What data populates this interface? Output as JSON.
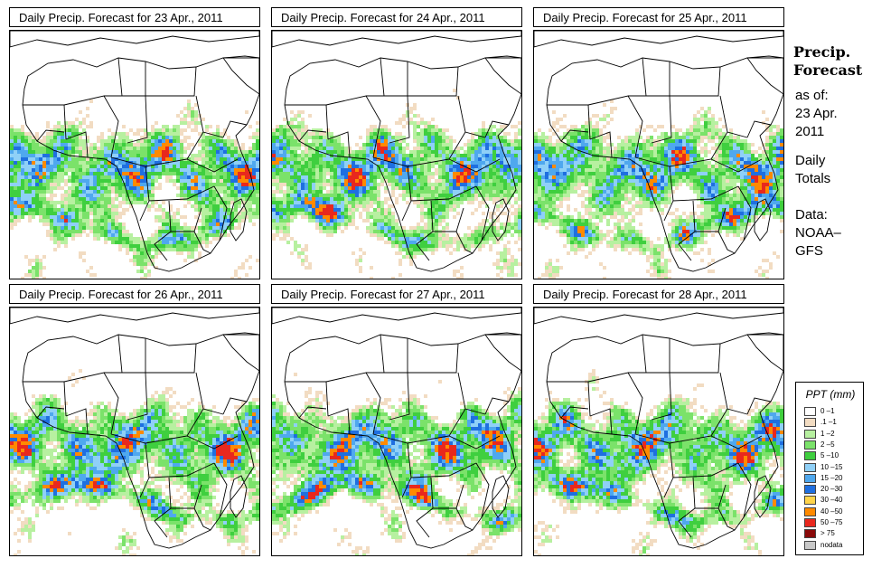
{
  "title_prefix": "Daily Precip. Forecast for",
  "panels": [
    {
      "date": "23 Apr., 2011",
      "seed": 11
    },
    {
      "date": "24 Apr., 2011",
      "seed": 23
    },
    {
      "date": "25 Apr., 2011",
      "seed": 37
    },
    {
      "date": "26 Apr., 2011",
      "seed": 41
    },
    {
      "date": "27 Apr., 2011",
      "seed": 53
    },
    {
      "date": "28 Apr., 2011",
      "seed": 67
    }
  ],
  "side": {
    "title_line1": "Precip.",
    "title_line2": "Forecast",
    "asof_label": "as of:",
    "asof_date1": "23 Apr.",
    "asof_date2": "2011",
    "totals_line1": "Daily",
    "totals_line2": "Totals",
    "data_line1": "Data:",
    "data_line2": "NOAA–",
    "data_line3": "GFS"
  },
  "legend": {
    "title": "PPT (mm)",
    "classes": [
      {
        "label": "0 –1",
        "color": "#ffffff"
      },
      {
        "label": ".1 –1",
        "color": "#f2dcc2"
      },
      {
        "label": "1 –2",
        "color": "#b7f0a0"
      },
      {
        "label": "2 –5",
        "color": "#7be26a"
      },
      {
        "label": "5 –10",
        "color": "#3fcf3f"
      },
      {
        "label": "10 –15",
        "color": "#8fd0f7"
      },
      {
        "label": "15 –20",
        "color": "#4fa8ee"
      },
      {
        "label": "20 –30",
        "color": "#1f6fe0"
      },
      {
        "label": "30 –40",
        "color": "#ffd44a"
      },
      {
        "label": "40 –50",
        "color": "#ff8a00"
      },
      {
        "label": "50 –75",
        "color": "#e8281e"
      },
      {
        "label": "> 75",
        "color": "#8a0a0a"
      },
      {
        "label": "nodata",
        "color": "#c8c8c8"
      }
    ]
  }
}
